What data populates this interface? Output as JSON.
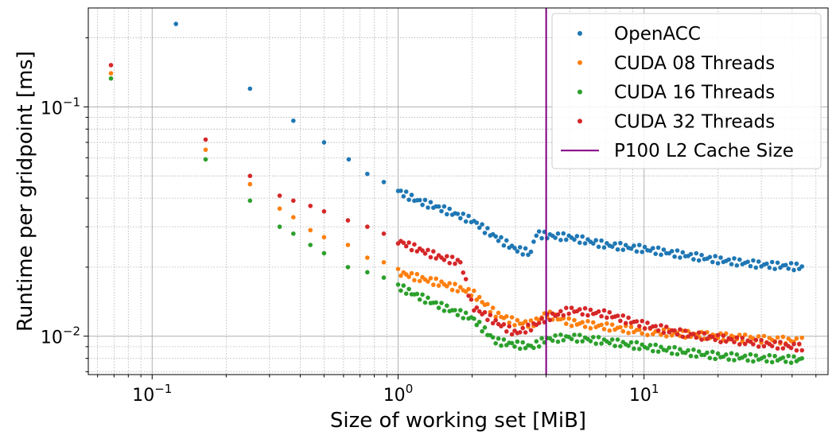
{
  "chart_data": {
    "type": "scatter",
    "title": "",
    "xlabel": "Size of working set [MiB]",
    "ylabel": "Runtime per gridpoint [ms]",
    "xscale": "log",
    "yscale": "log",
    "xlim": [
      0.055,
      56
    ],
    "ylim": [
      0.0068,
      0.27
    ],
    "grid": "major and minor",
    "legend_position": "top-right",
    "x_ticks": [
      {
        "value": 0.1,
        "base": "10",
        "exp": "−1"
      },
      {
        "value": 1,
        "base": "10",
        "exp": "0"
      },
      {
        "value": 10,
        "base": "10",
        "exp": "1"
      }
    ],
    "y_ticks": [
      {
        "value": 0.01,
        "base": "10",
        "exp": "−2"
      },
      {
        "value": 0.1,
        "base": "10",
        "exp": "−1"
      }
    ],
    "series": [
      {
        "name": "OpenACC",
        "color": "#1f77b4",
        "marker": "circle",
        "anchors": [
          [
            0.125,
            0.23
          ],
          [
            0.25,
            0.12
          ],
          [
            0.375,
            0.087
          ],
          [
            0.5,
            0.07
          ],
          [
            0.63,
            0.059
          ],
          [
            0.75,
            0.051
          ],
          [
            0.875,
            0.047
          ],
          [
            1.0,
            0.043
          ],
          [
            1.2,
            0.039
          ],
          [
            1.5,
            0.036
          ],
          [
            2.0,
            0.032
          ],
          [
            2.5,
            0.027
          ],
          [
            3.0,
            0.024
          ],
          [
            3.5,
            0.023
          ],
          [
            3.6,
            0.028
          ],
          [
            4.0,
            0.0275
          ],
          [
            5.0,
            0.027
          ],
          [
            7.0,
            0.025
          ],
          [
            10.0,
            0.024
          ],
          [
            15.0,
            0.0225
          ],
          [
            20.0,
            0.0215
          ],
          [
            30.0,
            0.0205
          ],
          [
            45.0,
            0.02
          ]
        ]
      },
      {
        "name": "CUDA 08 Threads",
        "color": "#ff7f0e",
        "marker": "circle",
        "anchors": [
          [
            0.068,
            0.14
          ],
          [
            0.165,
            0.065
          ],
          [
            0.25,
            0.046
          ],
          [
            0.33,
            0.036
          ],
          [
            0.375,
            0.033
          ],
          [
            0.44,
            0.029
          ],
          [
            0.5,
            0.027
          ],
          [
            0.625,
            0.025
          ],
          [
            0.75,
            0.022
          ],
          [
            0.875,
            0.021
          ],
          [
            1.0,
            0.019
          ],
          [
            1.2,
            0.018
          ],
          [
            1.5,
            0.017
          ],
          [
            2.0,
            0.0155
          ],
          [
            2.5,
            0.0125
          ],
          [
            3.0,
            0.0115
          ],
          [
            3.5,
            0.0113
          ],
          [
            4.0,
            0.0125
          ],
          [
            5.0,
            0.0115
          ],
          [
            7.0,
            0.011
          ],
          [
            10.0,
            0.0105
          ],
          [
            15.0,
            0.0102
          ],
          [
            20.0,
            0.01
          ],
          [
            30.0,
            0.0097
          ],
          [
            45.0,
            0.0095
          ]
        ]
      },
      {
        "name": "CUDA 16 Threads",
        "color": "#2ca02c",
        "marker": "circle",
        "anchors": [
          [
            0.068,
            0.133
          ],
          [
            0.165,
            0.059
          ],
          [
            0.25,
            0.039
          ],
          [
            0.33,
            0.03
          ],
          [
            0.375,
            0.028
          ],
          [
            0.44,
            0.025
          ],
          [
            0.5,
            0.023
          ],
          [
            0.625,
            0.02
          ],
          [
            0.75,
            0.019
          ],
          [
            0.875,
            0.018
          ],
          [
            1.0,
            0.0165
          ],
          [
            1.2,
            0.015
          ],
          [
            1.5,
            0.0135
          ],
          [
            2.0,
            0.012
          ],
          [
            2.5,
            0.0095
          ],
          [
            3.0,
            0.0092
          ],
          [
            3.5,
            0.009
          ],
          [
            4.0,
            0.0097
          ],
          [
            5.0,
            0.0099
          ],
          [
            7.0,
            0.0095
          ],
          [
            10.0,
            0.009
          ],
          [
            15.0,
            0.0085
          ],
          [
            20.0,
            0.0082
          ],
          [
            30.0,
            0.008
          ],
          [
            45.0,
            0.0079
          ]
        ]
      },
      {
        "name": "CUDA 32 Threads",
        "color": "#d62728",
        "marker": "circle",
        "anchors": [
          [
            0.068,
            0.152
          ],
          [
            0.165,
            0.072
          ],
          [
            0.25,
            0.05
          ],
          [
            0.33,
            0.041
          ],
          [
            0.375,
            0.039
          ],
          [
            0.44,
            0.037
          ],
          [
            0.5,
            0.035
          ],
          [
            0.625,
            0.032
          ],
          [
            0.75,
            0.03
          ],
          [
            0.875,
            0.028
          ],
          [
            1.0,
            0.026
          ],
          [
            1.2,
            0.024
          ],
          [
            1.5,
            0.022
          ],
          [
            1.8,
            0.021
          ],
          [
            2.0,
            0.0135
          ],
          [
            2.5,
            0.0115
          ],
          [
            3.0,
            0.0103
          ],
          [
            3.5,
            0.011
          ],
          [
            4.0,
            0.012
          ],
          [
            5.0,
            0.013
          ],
          [
            7.0,
            0.0125
          ],
          [
            10.0,
            0.0112
          ],
          [
            15.0,
            0.0102
          ],
          [
            20.0,
            0.0098
          ],
          [
            30.0,
            0.0093
          ],
          [
            45.0,
            0.0089
          ]
        ]
      }
    ],
    "vertical_line": {
      "name": "P100 L2 Cache Size",
      "x": 4.0,
      "color": "#800080"
    }
  }
}
